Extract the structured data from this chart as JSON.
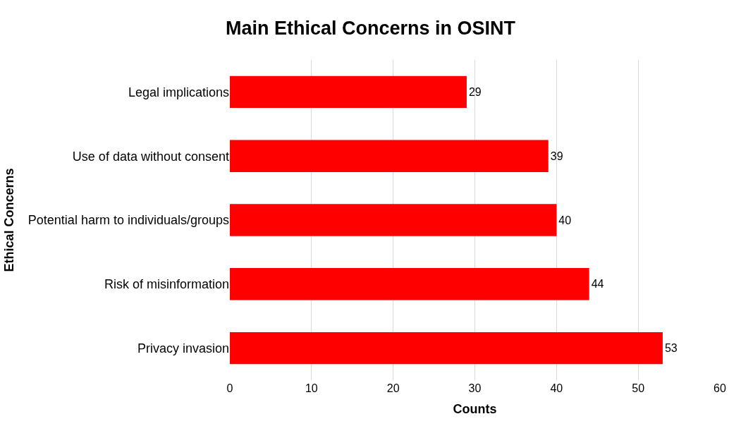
{
  "chart_data": {
    "type": "bar",
    "orientation": "horizontal",
    "title": "Main Ethical Concerns in OSINT",
    "xlabel": "Counts",
    "ylabel": "Ethical Concerns",
    "categories": [
      "Legal implications",
      "Use of data without consent",
      "Potential harm to individuals/groups",
      "Risk of misinformation",
      "Privacy invasion"
    ],
    "values": [
      29,
      39,
      40,
      44,
      53
    ],
    "color": "#ff0000",
    "xlim": [
      0,
      60
    ],
    "xticks": [
      0,
      10,
      20,
      30,
      40,
      50,
      60
    ],
    "grid": "x",
    "data_labels": true
  }
}
